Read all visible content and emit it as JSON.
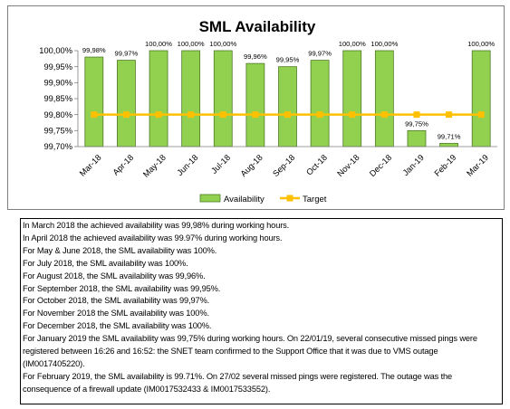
{
  "chart_data": {
    "type": "bar",
    "title": "SML Availability",
    "categories": [
      "Mar-18",
      "Apr-18",
      "May-18",
      "Jun-18",
      "Jul-18",
      "Aug-18",
      "Sep-18",
      "Oct-18",
      "Nov-18",
      "Dec-18",
      "Jan-19",
      "Feb-19",
      "Mar-19"
    ],
    "series": [
      {
        "name": "Availability",
        "kind": "bar",
        "color": "#92d050",
        "values": [
          99.98,
          99.97,
          100.0,
          100.0,
          100.0,
          99.96,
          99.95,
          99.97,
          100.0,
          100.0,
          99.75,
          99.71,
          100.0
        ],
        "labels": [
          "99,98%",
          "99,97%",
          "100,00%",
          "100,00%",
          "100,00%",
          "99,96%",
          "99,95%",
          "99,97%",
          "100,00%",
          "100,00%",
          "99,75%",
          "99,71%",
          "100,00%"
        ]
      },
      {
        "name": "Target",
        "kind": "line",
        "color": "#ffc000",
        "values": [
          99.8,
          99.8,
          99.8,
          99.8,
          99.8,
          99.8,
          99.8,
          99.8,
          99.8,
          99.8,
          99.8,
          99.8,
          99.8
        ]
      }
    ],
    "ylim": [
      99.7,
      100.0
    ],
    "yticks": [
      {
        "value": 100.0,
        "label": "100,00%"
      },
      {
        "value": 99.95,
        "label": "99,95%"
      },
      {
        "value": 99.9,
        "label": "99,90%"
      },
      {
        "value": 99.85,
        "label": "99,85%"
      },
      {
        "value": 99.8,
        "label": "99,80%"
      },
      {
        "value": 99.75,
        "label": "99,75%"
      },
      {
        "value": 99.7,
        "label": "99,70%"
      }
    ],
    "legend_position": "bottom",
    "grid": false
  },
  "notes": [
    "In March 2018 the achieved availability was 99,98% during working hours.",
    "In April 2018 the achieved availability was 99.97% during working hours.",
    "For May & June 2018,  the SML availability was 100%.",
    "For July 2018,  the SML availability was 100%.",
    "For August 2018,  the SML availability was 99,96%.",
    "For September 2018,  the SML availability was 99,95%.",
    "For October 2018,  the SML availability was 99,97%.",
    "For November 2018 the SML availability was 100%.",
    "For December 2018,  the SML availability was 100%.",
    "For January 2019 the SML availability was 99,75% during working hours. On 22/01/19, several consecutive missed pings were registered between 16:26 and 16:52: the SNET team confirmed to the Support Office that it was due to VMS outage (IM0017405220).",
    "For February 2019, the SML availability is 99.71%. On 27/02 several missed pings were registered. The outage was the consequence of a firewall update (IM0017532433 & IM0017533552)."
  ]
}
